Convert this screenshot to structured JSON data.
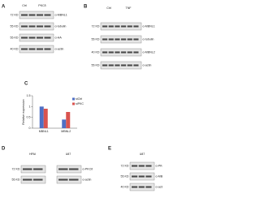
{
  "panels": [
    {
      "letter": "A",
      "headers": [
        "Ctrl",
        "PKCδ"
      ],
      "rows": [
        {
          "left": "72 KD",
          "right": "α-MBNL1"
        },
        {
          "left": "55 KD",
          "right": "α-tubulin"
        },
        {
          "left": "55 KD",
          "right": "α-HA"
        },
        {
          "left": "40 KD",
          "right": "α-actin"
        }
      ]
    },
    {
      "letter": "B",
      "headers": [
        "Ctrl",
        "TNF"
      ],
      "rows": [
        {
          "left": "72 KD",
          "right": "α-MBNL1"
        },
        {
          "left": "55 KD",
          "right": "α-tubulin"
        },
        {
          "left": "40 KD",
          "right": "α-MBNL2"
        },
        {
          "left": "55 KD",
          "right": "α-actin"
        }
      ]
    },
    {
      "letter": "D",
      "headers": [
        "HPAI",
        "U87"
      ],
      "rows": [
        {
          "left": "72 KD",
          "right": "α-PKCδ"
        },
        {
          "left": "55 KD",
          "right": "α-actin"
        }
      ]
    },
    {
      "letter": "E",
      "headers": [
        "U87"
      ],
      "rows": [
        {
          "left": "72 KD",
          "right": "α-PKCα"
        },
        {
          "left": "55 KD",
          "right": "α-MBNL1"
        },
        {
          "left": "40 KD",
          "right": "α-actin"
        }
      ]
    }
  ],
  "chart_data": {
    "type": "bar",
    "letter": "C",
    "y_label": "Relative expression",
    "categories": [
      "MBNL1",
      "MBNL2"
    ],
    "series": [
      {
        "name": "siCtrl",
        "color": "#4f6fc4",
        "values": [
          1.0,
          0.4
        ]
      },
      {
        "name": "siPKC",
        "color": "#d9534f",
        "values": [
          0.9,
          0.75
        ]
      }
    ],
    "ylim": [
      0,
      1.5
    ],
    "yticks": [
      0,
      0.5,
      1,
      1.5
    ]
  }
}
